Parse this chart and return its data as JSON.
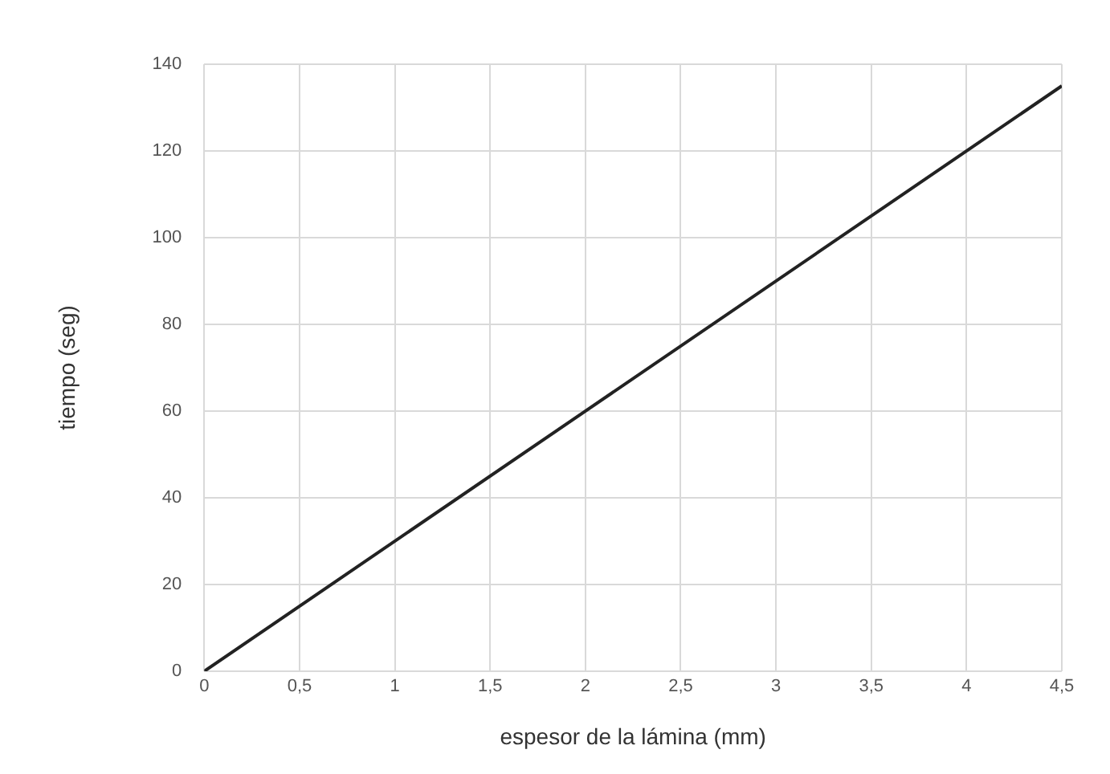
{
  "chart_data": {
    "type": "line",
    "xlabel": "espesor de la lámina (mm)",
    "ylabel": "tiempo (seg)",
    "x": [
      0,
      4.5
    ],
    "series": [
      {
        "color": "#222222",
        "values": [
          0,
          135
        ]
      }
    ],
    "xlim": [
      0,
      4.5
    ],
    "xticks": [
      0,
      {
        "value": 0.5,
        "label": "0,5"
      },
      1,
      {
        "value": 1.5,
        "label": "1,5"
      },
      2,
      {
        "value": 2.5,
        "label": "2,5"
      },
      3,
      {
        "value": 3.5,
        "label": "3,5"
      },
      4,
      {
        "value": 4.5,
        "label": "4,5"
      }
    ],
    "ylim": [
      0,
      140
    ],
    "yticks": [
      0,
      20,
      40,
      60,
      80,
      100,
      120,
      140
    ],
    "grid": true,
    "legend": false,
    "marker": "none",
    "line_style": "solid"
  }
}
